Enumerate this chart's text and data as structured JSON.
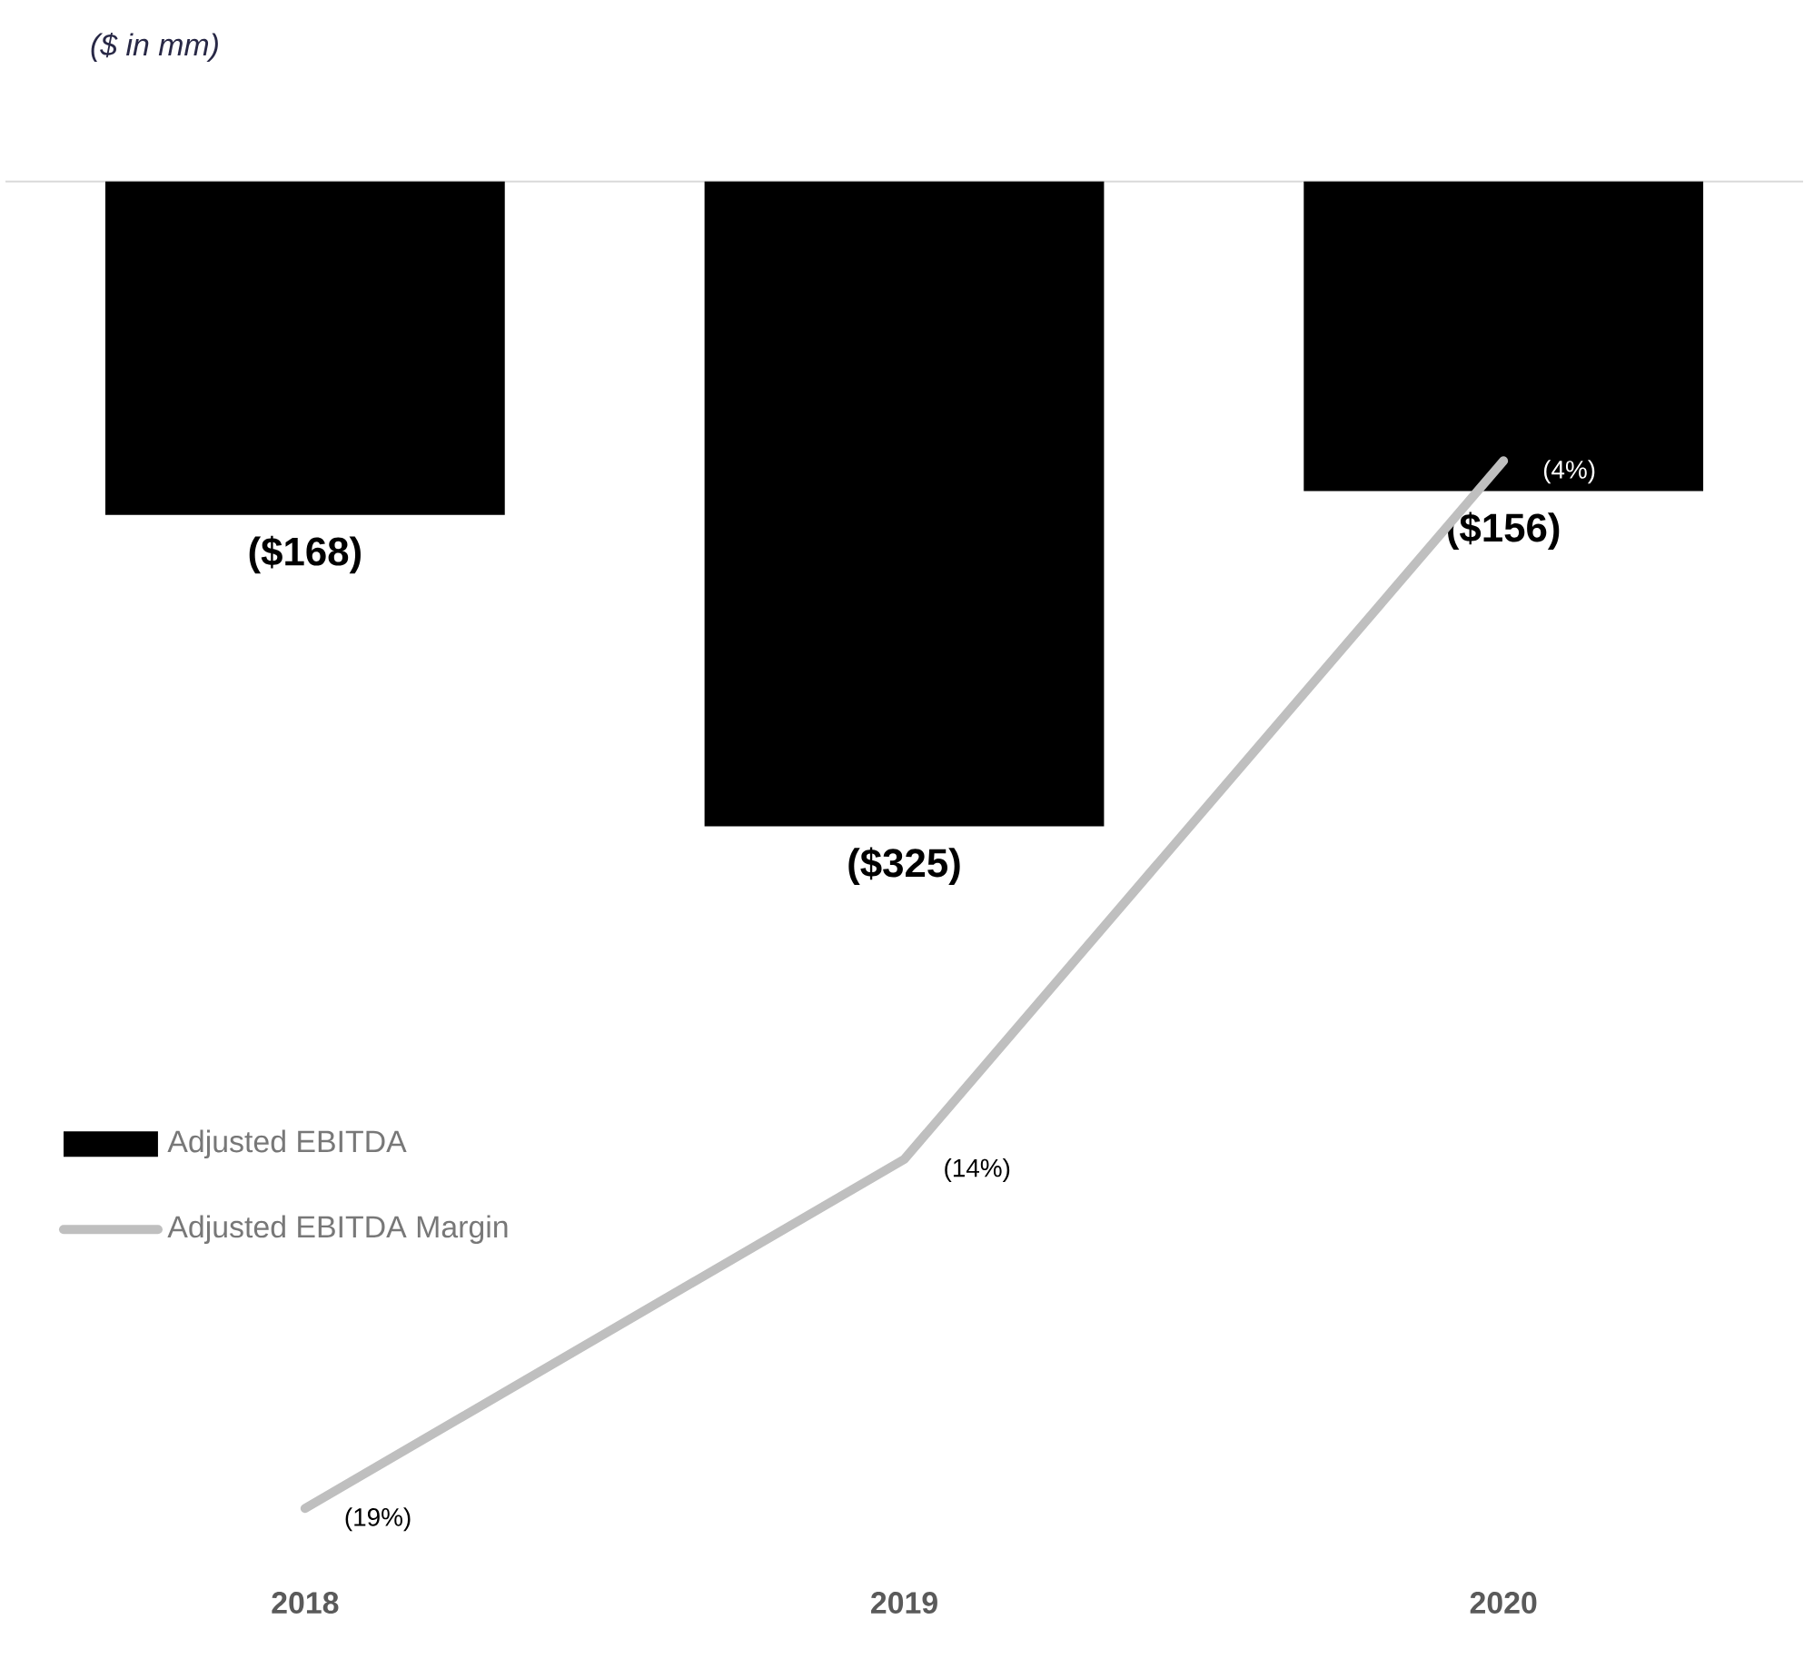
{
  "chart_data": {
    "type": "bar",
    "title": "($ in mm)",
    "categories": [
      "2018",
      "2019",
      "2020"
    ],
    "series": [
      {
        "name": "Adjusted EBITDA",
        "color": "#000000",
        "values": [
          -168,
          -325,
          -156
        ],
        "value_labels": [
          "($168)",
          "($325)",
          "($156)"
        ]
      },
      {
        "name": "Adjusted EBITDA Margin",
        "type": "line",
        "axis": "y2",
        "color": "#bfbfbf",
        "values": [
          -19,
          -14,
          -4
        ],
        "value_labels": [
          "(19%)",
          "(14%)",
          "(4%)"
        ]
      }
    ],
    "tick_labels": "x",
    "legend": "left",
    "grid": false,
    "marker": "none",
    "line_style": "solid"
  }
}
